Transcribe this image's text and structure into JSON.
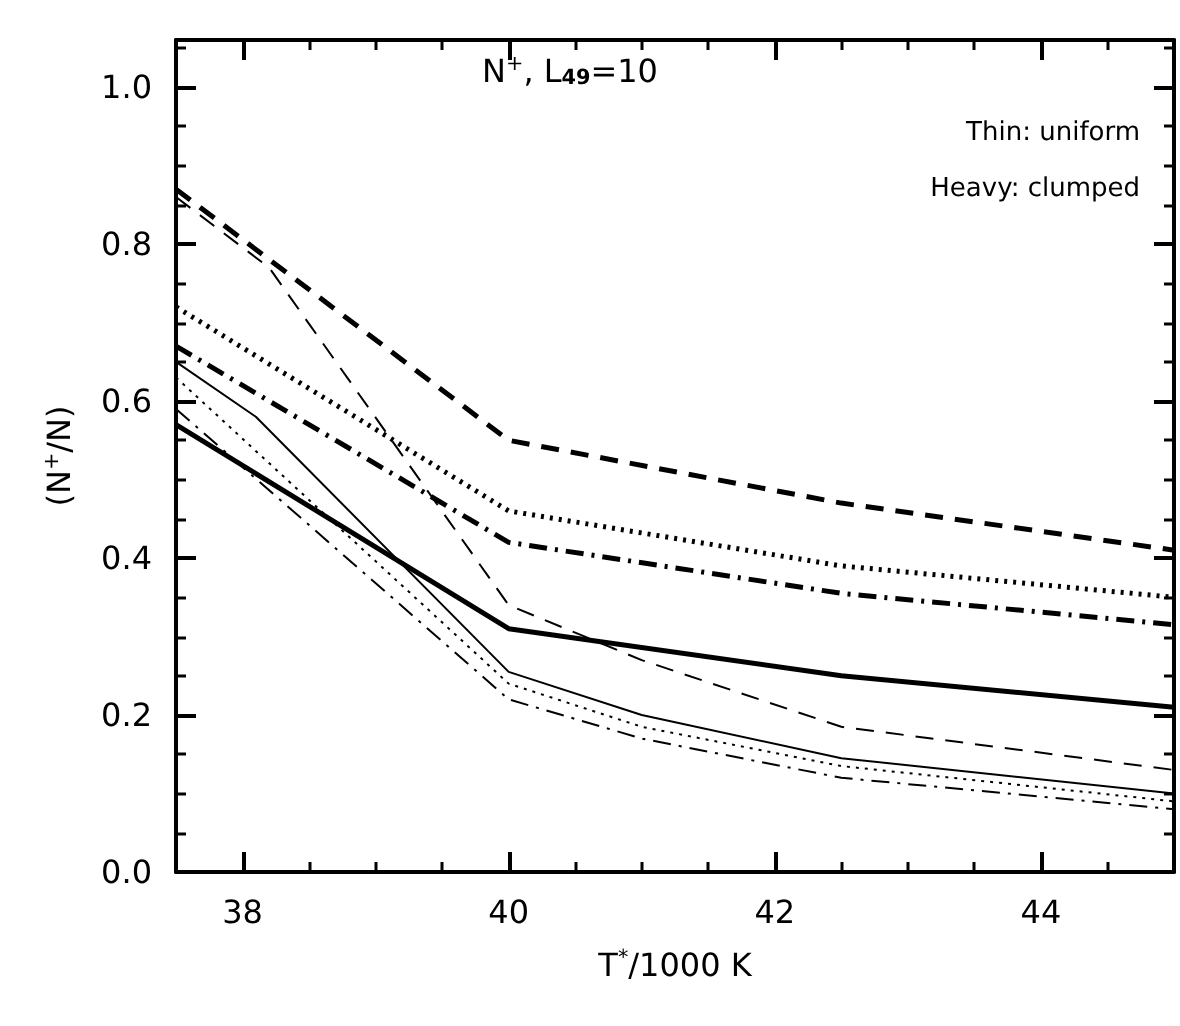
{
  "chart_data": {
    "type": "line",
    "title": "N$^{+}$, L$_{49}$=10",
    "xlabel": "T$^{*}$/1000 K",
    "ylabel": "(N$^{+}$/N)",
    "annotations": [
      "Thin: uniform",
      "Heavy: clumped"
    ],
    "xlim": [
      37.5,
      45
    ],
    "xticks": [
      38,
      40,
      42,
      44
    ],
    "ylim": [
      0,
      1.06
    ],
    "yticks": [
      {
        "value": 0,
        "label": "0.0"
      },
      {
        "value": 0.2,
        "label": "0.2"
      },
      {
        "value": 0.4,
        "label": "0.4"
      },
      {
        "value": 0.6,
        "label": "0.6"
      },
      {
        "value": 0.8,
        "label": "0.8"
      },
      {
        "value": 1,
        "label": "1.0"
      }
    ],
    "grid": false,
    "marker": "none",
    "series": [
      {
        "color": "#000000",
        "line_style": "dashed",
        "x": [
          37.5,
          40,
          42.5,
          45
        ],
        "values": [
          0.87,
          0.55,
          0.47,
          0.41
        ]
      },
      {
        "color": "#000000",
        "line_style": "dotted",
        "x": [
          37.5,
          40,
          42.5,
          45
        ],
        "values": [
          0.72,
          0.46,
          0.39,
          0.35
        ]
      },
      {
        "color": "#000000",
        "line_style": "dashdot",
        "x": [
          37.5,
          40,
          42.5,
          45
        ],
        "values": [
          0.67,
          0.42,
          0.355,
          0.315
        ]
      },
      {
        "color": "#000000",
        "line_style": "solid",
        "x": [
          37.5,
          40,
          42.5,
          45
        ],
        "values": [
          0.57,
          0.31,
          0.25,
          0.21
        ]
      },
      {
        "color": "#000000",
        "line_style": "dashed",
        "x": [
          37.5,
          38.2,
          40,
          41,
          42.5,
          45
        ],
        "values": [
          0.86,
          0.77,
          0.34,
          0.27,
          0.185,
          0.13
        ]
      },
      {
        "color": "#000000",
        "line_style": "solid",
        "x": [
          37.5,
          38.1,
          40,
          41,
          42.5,
          45
        ],
        "values": [
          0.65,
          0.58,
          0.255,
          0.2,
          0.145,
          0.1
        ]
      },
      {
        "color": "#000000",
        "line_style": "dotted",
        "x": [
          37.5,
          40,
          41,
          42.5,
          45
        ],
        "values": [
          0.63,
          0.24,
          0.185,
          0.135,
          0.09
        ]
      },
      {
        "color": "#000000",
        "line_style": "dashdot",
        "x": [
          37.5,
          40,
          41,
          42.5,
          45
        ],
        "values": [
          0.59,
          0.22,
          0.17,
          0.12,
          0.08
        ]
      }
    ]
  }
}
